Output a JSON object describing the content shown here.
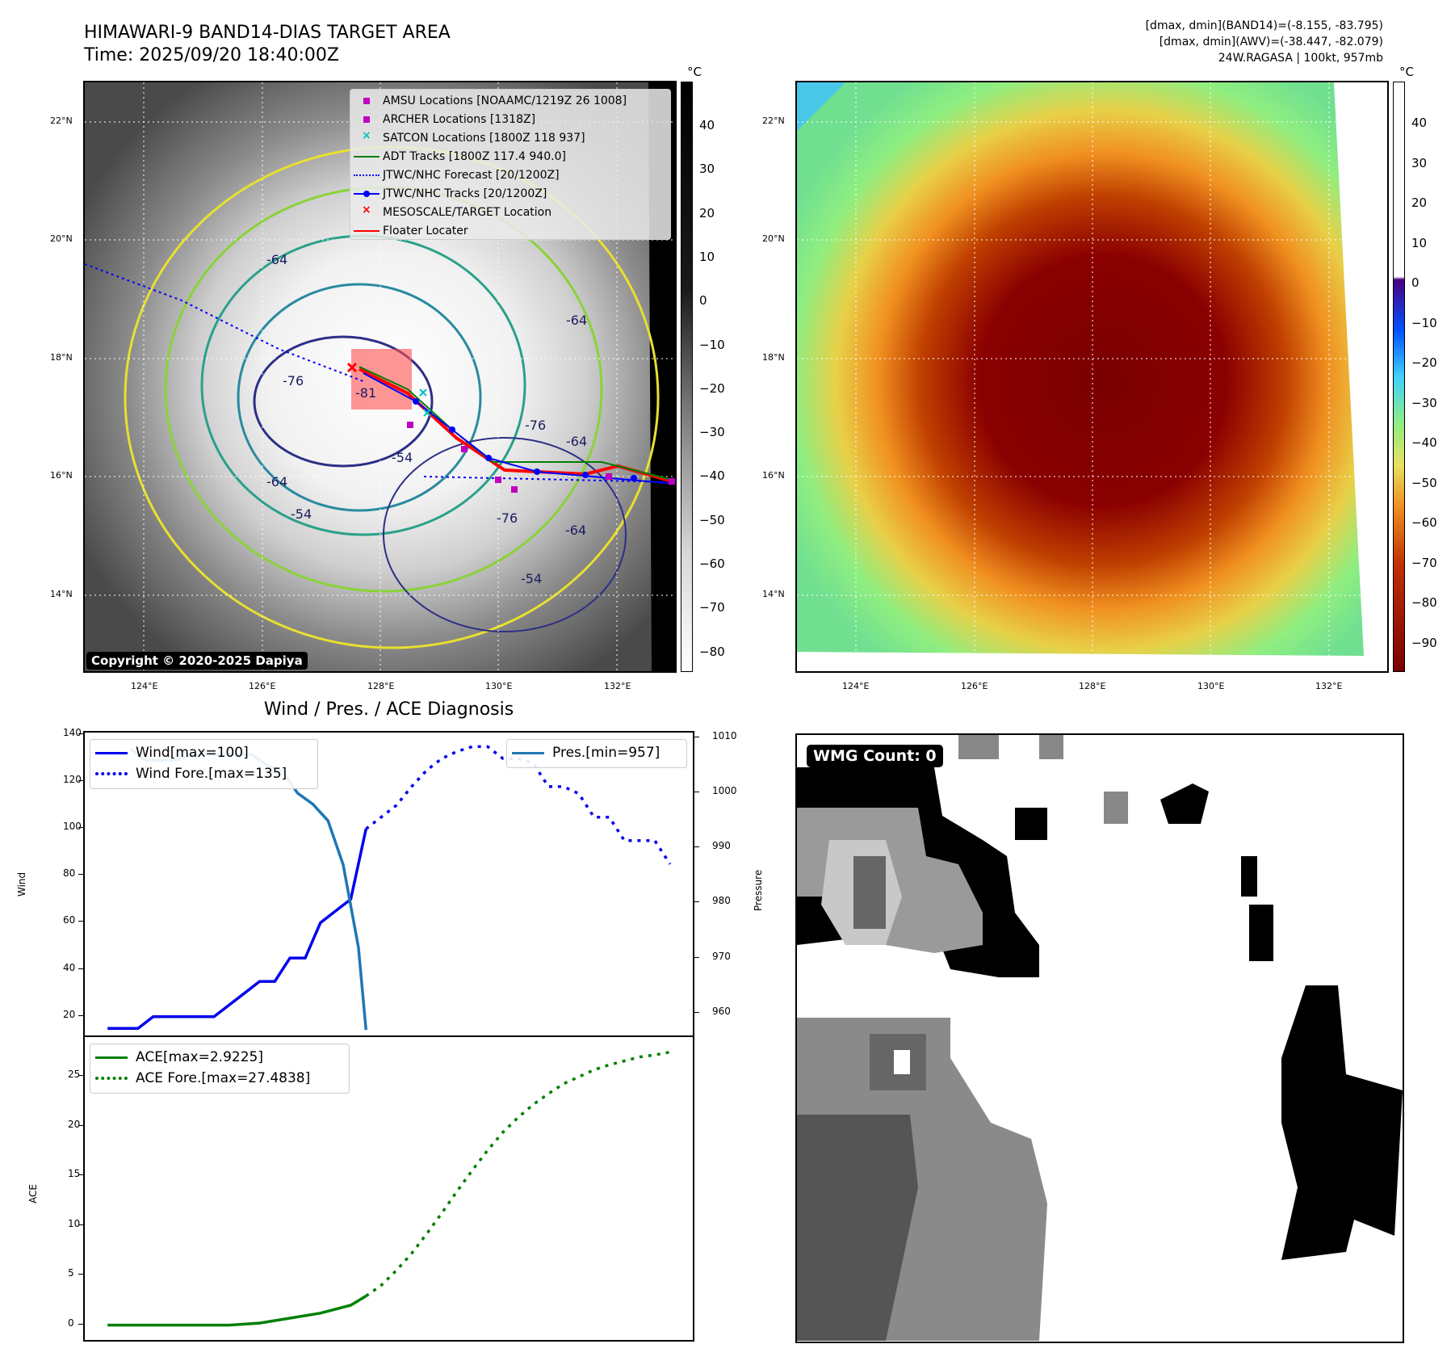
{
  "header": {
    "title_line1": "HIMAWARI-9 BAND14-DIAS TARGET AREA",
    "title_line2": "Time: 2025/09/20 18:40:00Z",
    "info_line1": "[dmax, dmin](BAND14)=(-8.155, -83.795)",
    "info_line2": "[dmax, dmin](AWV)=(-38.447, -82.079)",
    "info_line3": "24W.RAGASA | 100kt, 957mb"
  },
  "map_axes": {
    "lon_labels": [
      "124°E",
      "126°E",
      "128°E",
      "130°E",
      "132°E"
    ],
    "lat_labels": [
      "22°N",
      "20°N",
      "18°N",
      "16°N",
      "14°N"
    ]
  },
  "left_map": {
    "copyright": "Copyright © 2020-2025 Dapiya",
    "contour_labels": [
      "-76",
      "-64",
      "-54",
      "-54",
      "-64",
      "-76",
      "-64",
      "-54",
      "-76",
      "-81",
      "-64",
      "-64"
    ],
    "legend": [
      {
        "label": "AMSU Locations [NOAAMC/1219Z 26 1008]",
        "symbol": "square",
        "color": "#c000c0"
      },
      {
        "label": "ARCHER Locations [1318Z]",
        "symbol": "square",
        "color": "#c000c0"
      },
      {
        "label": "SATCON Locations [1800Z 118 937]",
        "symbol": "x",
        "color": "#00c0c0"
      },
      {
        "label": "ADT Tracks [1800Z 117.4 940.0]",
        "symbol": "line",
        "color": "#008000"
      },
      {
        "label": "JTWC/NHC Forecast [20/1200Z]",
        "symbol": "dotted",
        "color": "#0000ff"
      },
      {
        "label": "JTWC/NHC Tracks [20/1200Z]",
        "symbol": "line-dot",
        "color": "#0000ff"
      },
      {
        "label": "MESOSCALE/TARGET Location",
        "symbol": "x",
        "color": "#ff0000"
      },
      {
        "label": "Floater Locater",
        "symbol": "line",
        "color": "#ff0000"
      }
    ],
    "colorbar": {
      "unit": "°C",
      "ticks": [
        "40",
        "30",
        "20",
        "10",
        "0",
        "−10",
        "−20",
        "−30",
        "−40",
        "−50",
        "−60",
        "−70",
        "−80"
      ]
    }
  },
  "right_map": {
    "colorbar": {
      "unit": "°C",
      "ticks": [
        "40",
        "30",
        "20",
        "10",
        "0",
        "−10",
        "−20",
        "−30",
        "−40",
        "−50",
        "−60",
        "−70",
        "−80",
        "−90"
      ]
    }
  },
  "wmg": {
    "badge": "WMG Count: 0"
  },
  "chart_data": [
    {
      "type": "line",
      "title": "Wind / Pres. / ACE Diagnosis",
      "ylabel": "Wind",
      "y2label": "Pressure",
      "ylim": [
        12,
        141
      ],
      "y2lim": [
        956,
        1011
      ],
      "yticks": [
        "140",
        "120",
        "100",
        "80",
        "60",
        "40",
        "20"
      ],
      "y2ticks": [
        "1010",
        "1000",
        "990",
        "980",
        "970",
        "960"
      ],
      "series": [
        {
          "name": "Wind[max=100]",
          "axis": "left",
          "color": "#0000ee",
          "style": "solid",
          "x": [
            0,
            1,
            2,
            3,
            4,
            5,
            6,
            7,
            8,
            9,
            10,
            11,
            12,
            13,
            14,
            15,
            16,
            17
          ],
          "values": [
            15,
            15,
            15,
            20,
            20,
            20,
            20,
            20,
            25,
            30,
            35,
            35,
            45,
            45,
            60,
            65,
            70,
            100
          ]
        },
        {
          "name": "Wind Fore.[max=135]",
          "axis": "left",
          "color": "#0000ee",
          "style": "dotted",
          "x": [
            17,
            18,
            19,
            20,
            21,
            22,
            23,
            24,
            25,
            26,
            27,
            28,
            29,
            30,
            31,
            32,
            33,
            34,
            35,
            36,
            37
          ],
          "values": [
            100,
            105,
            110,
            118,
            125,
            130,
            133,
            135,
            135,
            130,
            130,
            128,
            118,
            118,
            115,
            105,
            105,
            95,
            95,
            95,
            85
          ]
        },
        {
          "name": "Pres.[min=957]",
          "axis": "right",
          "color": "#1f77b4",
          "style": "solid",
          "x": [
            1.5,
            2.5,
            3.5,
            4.5,
            5.5,
            6.5,
            7.5,
            8.5,
            9.5,
            10.5,
            11.5,
            12.5,
            13.5,
            14.5,
            15.5,
            16.5,
            17
          ],
          "values": [
            1008,
            1006,
            1006,
            1006,
            1007,
            1007,
            1007,
            1007,
            1007,
            1005,
            1004,
            1000,
            998,
            995,
            987,
            972,
            957
          ]
        }
      ]
    },
    {
      "type": "line",
      "ylabel": "ACE",
      "ylim": [
        -1.5,
        29
      ],
      "yticks": [
        "25",
        "20",
        "15",
        "10",
        "5",
        "0"
      ],
      "series": [
        {
          "name": "ACE[max=2.9225]",
          "color": "#008000",
          "style": "solid",
          "x": [
            0,
            2,
            4,
            6,
            8,
            10,
            12,
            14,
            16,
            17
          ],
          "values": [
            0,
            0,
            0,
            0,
            0,
            0.2,
            0.7,
            1.2,
            2.0,
            2.9225
          ]
        },
        {
          "name": "ACE Fore.[max=27.4838]",
          "color": "#008000",
          "style": "dotted",
          "x": [
            17,
            18,
            19,
            20,
            21,
            22,
            23,
            24,
            25,
            26,
            27,
            28,
            29,
            30,
            31,
            32,
            33,
            34,
            35,
            36,
            37
          ],
          "values": [
            2.9225,
            4.0,
            5.5,
            7.2,
            9.2,
            11.3,
            13.5,
            15.6,
            17.6,
            19.4,
            20.9,
            22.2,
            23.3,
            24.3,
            25.0,
            25.7,
            26.2,
            26.6,
            27.0,
            27.2,
            27.4838
          ]
        }
      ]
    }
  ]
}
